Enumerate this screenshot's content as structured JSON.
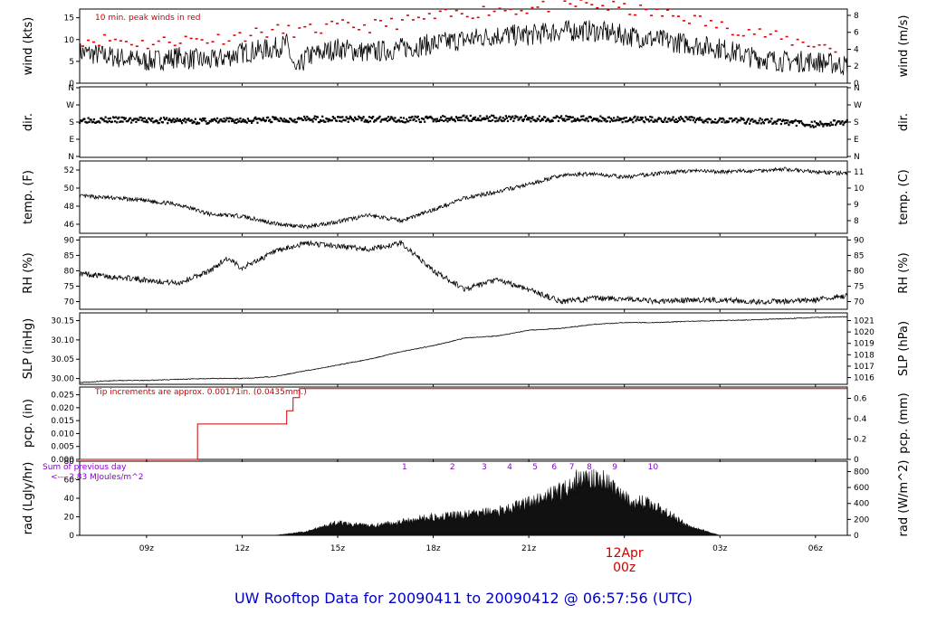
{
  "colors": {
    "peak": "#dd0000",
    "precip": "#cc0000",
    "hours": "#8800cc",
    "footer": "#0000cc",
    "date": "#cc0000",
    "series": "#000000"
  },
  "footer": "UW Rooftop Data for 20090411  to  20090412 @ 06:57:56  (UTC)",
  "chart_data": {
    "type": "line",
    "title": "UW Rooftop Data for 20090411  to  20090412 @ 06:57:56  (UTC)",
    "x_ticks": [
      "09z",
      "12z",
      "15z",
      "18z",
      "21z",
      "00z",
      "03z",
      "06z"
    ],
    "x_tick_hours": [
      9,
      12,
      15,
      18,
      21,
      24,
      27,
      30
    ],
    "x_range_hours": [
      6.9,
      31.0
    ],
    "date_label": "12Apr",
    "panels": [
      {
        "key": "wind",
        "ylabel": "wind (kts)",
        "ylabel_right": "wind (m/s)",
        "yticks": [
          "0",
          "5",
          "10",
          "15"
        ],
        "yticks_right": [
          "0",
          "2",
          "4",
          "6",
          "8"
        ],
        "ylim": [
          0,
          17
        ],
        "note": "10 min. peak winds in red",
        "series": [
          {
            "name": "wind speed",
            "x": [
              7,
              8,
              9,
              10,
              11,
              12,
              13,
              13.4,
              13.7,
              14,
              15,
              16,
              17,
              18,
              19,
              20,
              21,
              22,
              23,
              24,
              25,
              26,
              27,
              28,
              29,
              30,
              31
            ],
            "y": [
              7,
              6,
              5,
              6,
              5,
              7,
              8,
              9,
              2,
              6,
              8,
              7,
              8,
              9,
              10,
              11,
              11,
              12,
              12,
              11,
              10,
              9,
              8,
              6,
              5,
              5,
              4
            ]
          },
          {
            "name": "10 min. peak winds",
            "x": [
              7,
              8,
              9,
              10,
              11,
              12,
              13,
              14,
              15,
              16,
              17,
              18,
              19,
              20,
              21,
              22,
              23,
              24,
              25,
              26,
              27,
              28,
              29,
              30,
              31
            ],
            "y": [
              10,
              10,
              9,
              10,
              10,
              11,
              12,
              12,
              13,
              13,
              14,
              15,
              16,
              17,
              17,
              18,
              18,
              17,
              16,
              15,
              13,
              12,
              10,
              9,
              7
            ]
          }
        ]
      },
      {
        "key": "dir",
        "ylabel": "dir.",
        "ylabel_right": "dir.",
        "yticks": [
          "N",
          "E",
          "S",
          "W",
          "N"
        ],
        "ylim": [
          0,
          360
        ],
        "series": [
          {
            "name": "direction",
            "x": [
              7,
              9,
              11,
              13,
              15,
              17,
              19,
              21,
              23,
              25,
              27,
              29,
              30,
              31
            ],
            "y": [
              192,
              190,
              185,
              193,
              196,
              193,
              200,
              198,
              196,
              193,
              192,
              182,
              168,
              180
            ]
          }
        ]
      },
      {
        "key": "temp",
        "ylabel": "temp. (F)",
        "ylabel_right": "temp. (C)",
        "yticks": [
          "46",
          "48",
          "50",
          "52"
        ],
        "yticks_right": [
          "8",
          "9",
          "10",
          "11"
        ],
        "ylim": [
          45,
          53
        ],
        "series": [
          {
            "name": "temperature",
            "x": [
              7,
              8,
              9,
              10,
              11,
              12,
              13,
              14,
              15,
              16,
              17,
              18,
              19,
              20,
              21,
              22,
              23,
              24,
              25,
              26,
              27,
              28,
              29,
              30,
              31
            ],
            "y": [
              49.1,
              48.9,
              48.6,
              48.2,
              47.1,
              46.9,
              46.1,
              45.7,
              46.3,
              47.0,
              46.4,
              47.6,
              48.9,
              49.6,
              50.4,
              51.4,
              51.6,
              51.2,
              51.6,
              51.9,
              51.8,
              51.9,
              52.1,
              51.8,
              51.6
            ]
          }
        ]
      },
      {
        "key": "rh",
        "ylabel": "RH (%)",
        "ylabel_right": "RH (%)",
        "yticks": [
          "70",
          "75",
          "80",
          "85",
          "90"
        ],
        "ylim": [
          67.5,
          91
        ],
        "series": [
          {
            "name": "RH",
            "x": [
              7,
              8,
              9,
              10,
              11,
              11.5,
              12,
              13,
              14,
              15,
              16,
              17,
              18,
              19,
              20,
              21,
              22,
              23,
              24,
              25,
              26,
              27,
              28,
              29,
              30,
              31
            ],
            "y": [
              79,
              78,
              77,
              76,
              80,
              84,
              81,
              86,
              89,
              88,
              87,
              89,
              80,
              74,
              77,
              74,
              70,
              71,
              71,
              70,
              70.5,
              70.5,
              70,
              70,
              70.5,
              72
            ]
          }
        ]
      },
      {
        "key": "slp",
        "ylabel": "SLP (inHg)",
        "ylabel_right": "SLP (hPa)",
        "yticks": [
          "30.00",
          "30.05",
          "30.10",
          "30.15"
        ],
        "yticks_right": [
          "1016",
          "1017",
          "1018",
          "1019",
          "1020",
          "1021"
        ],
        "ylim": [
          29.985,
          30.17
        ],
        "series": [
          {
            "name": "SLP",
            "x": [
              7,
              8,
              9,
              10,
              11,
              12,
              13,
              14,
              15,
              16,
              17,
              18,
              19,
              20,
              21,
              22,
              23,
              24,
              25,
              26,
              27,
              28,
              29,
              30,
              31
            ],
            "y": [
              29.99,
              29.995,
              29.995,
              29.998,
              30.0,
              30.0,
              30.005,
              30.02,
              30.035,
              30.05,
              30.07,
              30.085,
              30.105,
              30.11,
              30.125,
              30.13,
              30.14,
              30.145,
              30.145,
              30.148,
              30.15,
              30.152,
              30.155,
              30.158,
              30.16
            ]
          }
        ]
      },
      {
        "key": "pcp",
        "ylabel": "pcp. (in)",
        "ylabel_right": "pcp. (mm)",
        "yticks": [
          "0.000",
          "0.005",
          "0.010",
          "0.015",
          "0.020",
          "0.025"
        ],
        "yticks_right": [
          "0",
          "0.2",
          "0.4",
          "0.6"
        ],
        "ylim": [
          0,
          0.028
        ],
        "note": "Tip increments are approx. 0.00171in. (0.0435mm.)",
        "series": [
          {
            "name": "precip",
            "x": [
              6.9,
              10.4,
              10.6,
              13.2,
              13.4,
              13.6,
              13.8,
              31.0
            ],
            "y": [
              0,
              0,
              0.0137,
              0.0137,
              0.0188,
              0.0239,
              0.0274,
              0.0274
            ]
          }
        ]
      },
      {
        "key": "rad",
        "ylabel": "rad (Lgly/hr)",
        "ylabel_right": "rad (W/m^2)",
        "yticks": [
          "0",
          "20",
          "40",
          "60",
          "80"
        ],
        "yticks_right": [
          "0",
          "200",
          "400",
          "600",
          "800"
        ],
        "ylim": [
          0,
          80
        ],
        "note": "Sum of previous day <--- 2.83 MJoules/m^2",
        "hour_labels": [
          "1",
          "2",
          "3",
          "4",
          "5",
          "6",
          "7",
          "8",
          "9",
          "10"
        ],
        "series": [
          {
            "name": "radiation",
            "x": [
              13,
              14,
              15,
              16,
              17,
              18,
              19,
              20,
              21,
              22,
              22.5,
              23,
              23.5,
              24,
              25,
              26,
              27
            ],
            "y": [
              0,
              4,
              14,
              10,
              15,
              20,
              22,
              26,
              35,
              48,
              58,
              62,
              56,
              40,
              32,
              10,
              0
            ]
          }
        ]
      }
    ]
  }
}
